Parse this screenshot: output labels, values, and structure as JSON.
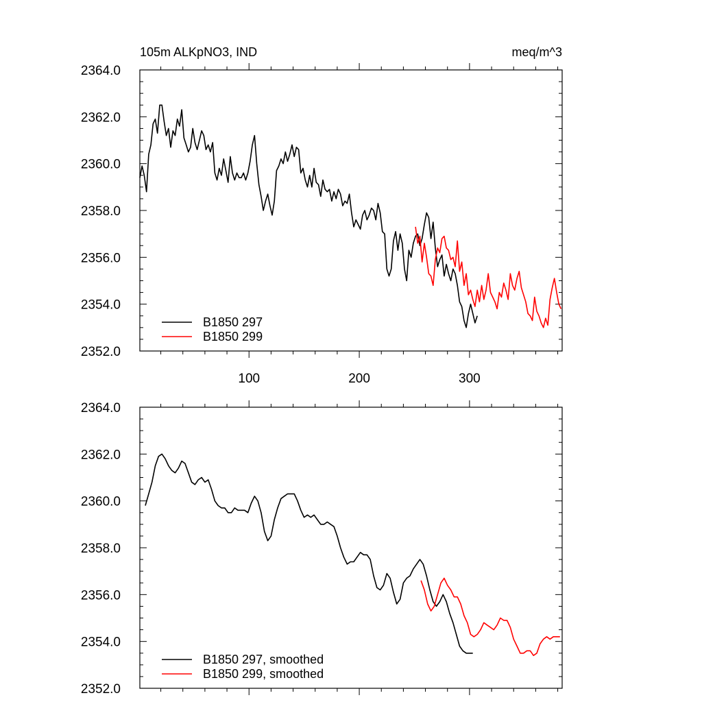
{
  "title_left": "105m ALKpNO3, IND",
  "title_right": "meq/m^3",
  "chart_data": [
    {
      "type": "line",
      "name": "raw",
      "xlim": [
        1,
        384
      ],
      "ylim": [
        2352,
        2364
      ],
      "grid": false,
      "yticks": [
        2352,
        2354,
        2356,
        2358,
        2360,
        2362,
        2364
      ],
      "ytick_labels": [
        "2352.0",
        "2354.0",
        "2356.0",
        "2358.0",
        "2360.0",
        "2362.0",
        "2364.0"
      ],
      "xticks": [
        100,
        200,
        300
      ],
      "xtick_labels": [
        "100",
        "200",
        "300"
      ],
      "legend_position": "bottom-left",
      "series": [
        {
          "name": "B1850 297",
          "color": "#000000",
          "x": [
            1,
            3,
            5,
            7,
            9,
            11,
            13,
            15,
            17,
            19,
            21,
            23,
            25,
            27,
            29,
            31,
            33,
            35,
            37,
            39,
            41,
            43,
            45,
            47,
            49,
            51,
            53,
            55,
            57,
            59,
            61,
            63,
            65,
            67,
            69,
            71,
            73,
            75,
            77,
            79,
            81,
            83,
            85,
            87,
            89,
            91,
            93,
            95,
            97,
            99,
            101,
            103,
            105,
            107,
            109,
            111,
            113,
            115,
            117,
            119,
            121,
            123,
            125,
            127,
            129,
            131,
            133,
            135,
            137,
            139,
            141,
            143,
            145,
            147,
            149,
            151,
            153,
            155,
            157,
            159,
            161,
            163,
            165,
            167,
            169,
            171,
            173,
            175,
            177,
            179,
            181,
            183,
            185,
            187,
            189,
            191,
            193,
            195,
            197,
            199,
            201,
            203,
            205,
            207,
            209,
            211,
            213,
            215,
            217,
            219,
            221,
            223,
            225,
            227,
            229,
            231,
            233,
            235,
            237,
            239,
            241,
            243,
            245,
            247,
            249,
            251,
            253,
            255,
            257,
            259,
            261,
            263,
            265,
            267,
            269,
            271,
            273,
            275,
            277,
            279,
            281,
            283,
            285,
            287,
            289,
            291,
            293,
            295,
            297,
            299,
            301,
            303,
            305,
            307
          ],
          "y": [
            2359.4,
            2359.9,
            2359.5,
            2358.8,
            2360.4,
            2360.8,
            2361.7,
            2361.9,
            2361.3,
            2362.5,
            2362.5,
            2361.8,
            2361.2,
            2361.5,
            2360.7,
            2361.4,
            2361.2,
            2361.9,
            2361.6,
            2362.3,
            2361.1,
            2360.8,
            2360.5,
            2360.7,
            2361.5,
            2360.9,
            2360.6,
            2361.0,
            2361.4,
            2361.2,
            2360.6,
            2360.8,
            2360.5,
            2360.9,
            2359.6,
            2359.3,
            2359.8,
            2359.5,
            2360.2,
            2359.7,
            2359.2,
            2360.3,
            2359.6,
            2359.3,
            2359.6,
            2359.4,
            2359.4,
            2359.6,
            2359.3,
            2359.6,
            2360.1,
            2360.8,
            2361.2,
            2360.0,
            2359.1,
            2358.6,
            2358.0,
            2358.4,
            2358.7,
            2358.2,
            2357.8,
            2358.4,
            2359.7,
            2359.9,
            2360.2,
            2360.0,
            2360.5,
            2360.1,
            2360.4,
            2360.8,
            2360.3,
            2360.7,
            2360.6,
            2359.6,
            2359.8,
            2359.3,
            2359.0,
            2359.5,
            2359.0,
            2359.8,
            2359.2,
            2359.1,
            2358.6,
            2359.3,
            2358.9,
            2358.8,
            2358.9,
            2358.4,
            2358.8,
            2358.5,
            2358.9,
            2358.7,
            2358.2,
            2358.4,
            2358.3,
            2358.7,
            2357.9,
            2357.3,
            2357.6,
            2357.4,
            2357.2,
            2357.8,
            2358.0,
            2357.6,
            2357.8,
            2358.1,
            2358.0,
            2357.6,
            2358.3,
            2357.9,
            2357.1,
            2357.0,
            2355.5,
            2355.2,
            2355.5,
            2356.7,
            2357.1,
            2356.3,
            2357.0,
            2356.6,
            2355.5,
            2355.0,
            2356.3,
            2356.0,
            2356.6,
            2356.9,
            2357.0,
            2356.5,
            2356.8,
            2357.4,
            2357.9,
            2357.7,
            2356.8,
            2357.5,
            2356.4,
            2355.6,
            2355.9,
            2356.1,
            2355.2,
            2355.7,
            2355.3,
            2355.0,
            2355.5,
            2355.3,
            2354.8,
            2354.1,
            2353.9,
            2353.3,
            2353.0,
            2353.6,
            2354.0,
            2353.6,
            2353.2,
            2353.5
          ]
        },
        {
          "name": "B1850 299",
          "color": "#ff0000",
          "x": [
            251,
            253,
            255,
            257,
            259,
            261,
            263,
            265,
            267,
            269,
            271,
            273,
            275,
            277,
            279,
            281,
            283,
            285,
            287,
            289,
            291,
            293,
            295,
            297,
            299,
            301,
            303,
            305,
            307,
            309,
            311,
            313,
            315,
            317,
            319,
            321,
            323,
            325,
            327,
            329,
            331,
            333,
            335,
            337,
            339,
            341,
            343,
            345,
            347,
            349,
            351,
            353,
            355,
            357,
            359,
            361,
            363,
            365,
            367,
            369,
            371,
            373,
            375,
            377,
            379,
            381,
            383
          ],
          "y": [
            2357.3,
            2356.6,
            2356.9,
            2355.8,
            2356.6,
            2356.0,
            2355.3,
            2355.2,
            2354.8,
            2355.9,
            2356.4,
            2356.2,
            2356.8,
            2356.9,
            2356.4,
            2356.3,
            2355.9,
            2356.0,
            2355.6,
            2356.7,
            2355.4,
            2355.8,
            2354.8,
            2355.3,
            2354.4,
            2354.6,
            2354.2,
            2353.9,
            2354.6,
            2354.1,
            2354.8,
            2354.2,
            2354.6,
            2355.3,
            2354.5,
            2354.3,
            2354.1,
            2353.8,
            2354.5,
            2354.3,
            2354.9,
            2354.6,
            2354.2,
            2355.3,
            2354.8,
            2354.6,
            2355.1,
            2355.4,
            2354.7,
            2354.4,
            2354.1,
            2353.6,
            2353.5,
            2353.3,
            2354.3,
            2353.7,
            2353.5,
            2353.2,
            2353.0,
            2353.4,
            2353.1,
            2354.2,
            2354.7,
            2355.1,
            2354.5,
            2354.0,
            2353.8
          ]
        }
      ]
    },
    {
      "type": "line",
      "name": "smoothed",
      "xlim": [
        1,
        384
      ],
      "ylim": [
        2352,
        2364
      ],
      "grid": false,
      "yticks": [
        2352,
        2354,
        2356,
        2358,
        2360,
        2362,
        2364
      ],
      "ytick_labels": [
        "2352.0",
        "2354.0",
        "2356.0",
        "2358.0",
        "2360.0",
        "2362.0",
        "2364.0"
      ],
      "xticks": [
        100,
        200,
        300
      ],
      "xtick_labels": [],
      "legend_position": "bottom-left",
      "series": [
        {
          "name": "B1850 297, smoothed",
          "color": "#000000",
          "x": [
            6,
            9,
            12,
            15,
            18,
            21,
            24,
            27,
            30,
            33,
            36,
            39,
            42,
            45,
            48,
            51,
            54,
            57,
            60,
            63,
            66,
            69,
            72,
            75,
            78,
            81,
            84,
            87,
            90,
            93,
            96,
            99,
            102,
            105,
            108,
            111,
            114,
            117,
            120,
            123,
            126,
            129,
            132,
            135,
            138,
            141,
            144,
            147,
            150,
            153,
            156,
            159,
            162,
            165,
            168,
            171,
            174,
            177,
            180,
            183,
            186,
            189,
            192,
            195,
            198,
            201,
            204,
            207,
            210,
            213,
            216,
            219,
            222,
            225,
            228,
            231,
            234,
            237,
            240,
            243,
            246,
            249,
            252,
            255,
            258,
            261,
            264,
            267,
            270,
            273,
            276,
            279,
            282,
            285,
            288,
            291,
            294,
            297,
            300,
            303
          ],
          "y": [
            2359.8,
            2360.3,
            2360.8,
            2361.5,
            2361.9,
            2362.0,
            2361.8,
            2361.5,
            2361.3,
            2361.2,
            2361.4,
            2361.7,
            2361.6,
            2361.2,
            2360.8,
            2360.7,
            2360.9,
            2361.0,
            2360.8,
            2360.9,
            2360.5,
            2360.0,
            2359.8,
            2359.7,
            2359.7,
            2359.5,
            2359.5,
            2359.7,
            2359.6,
            2359.6,
            2359.6,
            2359.5,
            2359.9,
            2360.2,
            2360.0,
            2359.5,
            2358.7,
            2358.3,
            2358.5,
            2359.2,
            2359.7,
            2360.1,
            2360.2,
            2360.3,
            2360.3,
            2360.3,
            2360.0,
            2359.6,
            2359.3,
            2359.4,
            2359.3,
            2359.4,
            2359.2,
            2359.0,
            2359.0,
            2359.1,
            2359.0,
            2358.9,
            2358.5,
            2358.0,
            2357.6,
            2357.3,
            2357.4,
            2357.4,
            2357.6,
            2357.8,
            2357.7,
            2357.7,
            2357.5,
            2356.8,
            2356.3,
            2356.2,
            2356.4,
            2356.9,
            2356.7,
            2356.1,
            2355.6,
            2355.8,
            2356.5,
            2356.7,
            2356.8,
            2357.1,
            2357.3,
            2357.5,
            2357.3,
            2356.8,
            2356.2,
            2355.7,
            2355.5,
            2355.7,
            2356.0,
            2355.7,
            2355.2,
            2354.8,
            2354.3,
            2353.8,
            2353.6,
            2353.5,
            2353.5,
            2353.5
          ]
        },
        {
          "name": "B1850 299, smoothed",
          "color": "#ff0000",
          "x": [
            256,
            259,
            262,
            265,
            268,
            271,
            274,
            277,
            280,
            283,
            286,
            289,
            292,
            295,
            298,
            301,
            304,
            307,
            310,
            313,
            316,
            319,
            322,
            325,
            328,
            331,
            334,
            337,
            340,
            343,
            346,
            349,
            352,
            355,
            358,
            361,
            364,
            367,
            370,
            373,
            376,
            379,
            382
          ],
          "y": [
            2356.6,
            2356.2,
            2355.6,
            2355.3,
            2355.5,
            2356.0,
            2356.5,
            2356.7,
            2356.4,
            2356.2,
            2355.9,
            2355.9,
            2355.6,
            2355.1,
            2354.8,
            2354.3,
            2354.2,
            2354.3,
            2354.5,
            2354.8,
            2354.7,
            2354.6,
            2354.5,
            2354.7,
            2355.0,
            2354.9,
            2354.9,
            2354.6,
            2354.1,
            2353.8,
            2353.5,
            2353.5,
            2353.6,
            2353.6,
            2353.4,
            2353.5,
            2353.9,
            2354.1,
            2354.2,
            2354.1,
            2354.2,
            2354.2,
            2354.2
          ]
        }
      ]
    }
  ]
}
